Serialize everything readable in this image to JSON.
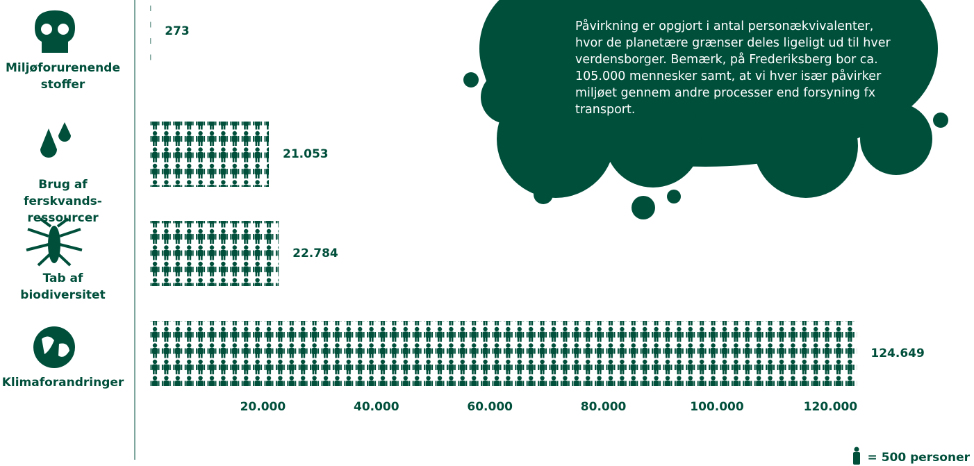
{
  "chart_data": {
    "type": "pictograph",
    "categories": [
      "Miljøforurenende stoffer",
      "Brug af ferskvands-ressourcer",
      "Tab af biodiversitet",
      "Klimaforandringer"
    ],
    "values": [
      273,
      21053,
      22784,
      124649
    ],
    "value_labels": [
      "273",
      "21.053",
      "22.784",
      "124.649"
    ],
    "color": "#004f3b",
    "xlim": [
      0,
      140000
    ],
    "xticks": [
      {
        "value": 20000,
        "label": "20.000"
      },
      {
        "value": 40000,
        "label": "40.000"
      },
      {
        "value": 60000,
        "label": "60.000"
      },
      {
        "value": 80000,
        "label": "80.000"
      },
      {
        "value": 100000,
        "label": "100.000"
      },
      {
        "value": 120000,
        "label": "120.000"
      }
    ],
    "legend": "= 500 personer",
    "note": "Påvirkning er opgjort i antal personækvivalenter, hvor de planetære grænser deles ligeligt ud til hver verdensborger. Bemærk, på Frederiksberg bor ca. 105.000 mennesker samt, at vi hver især påvirker miljøet gennem andre processer end forsyning fx transport."
  }
}
